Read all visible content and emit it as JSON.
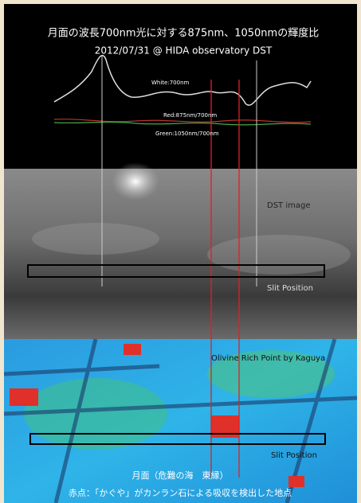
{
  "header": {
    "title": "月面の波長700nm光に対する875nm、1050nmの輝度比",
    "subtitle": "2012/07/31 @ HIDA observatory DST"
  },
  "profile_labels": {
    "white": "White:700nm",
    "red": "Red:875nm/700nm",
    "green": "Green:1050nm/700nm"
  },
  "dst_panel": {
    "label": "DST image",
    "slit": "Slit Position"
  },
  "map_panel": {
    "label": "Olivine Rich Point by Kaguya",
    "slit": "Slit Position"
  },
  "caption": {
    "line1": "月面（危難の海　東縁）",
    "line2": "赤点：「かぐや」がカンラン石による吸収を検出した地点"
  }
}
